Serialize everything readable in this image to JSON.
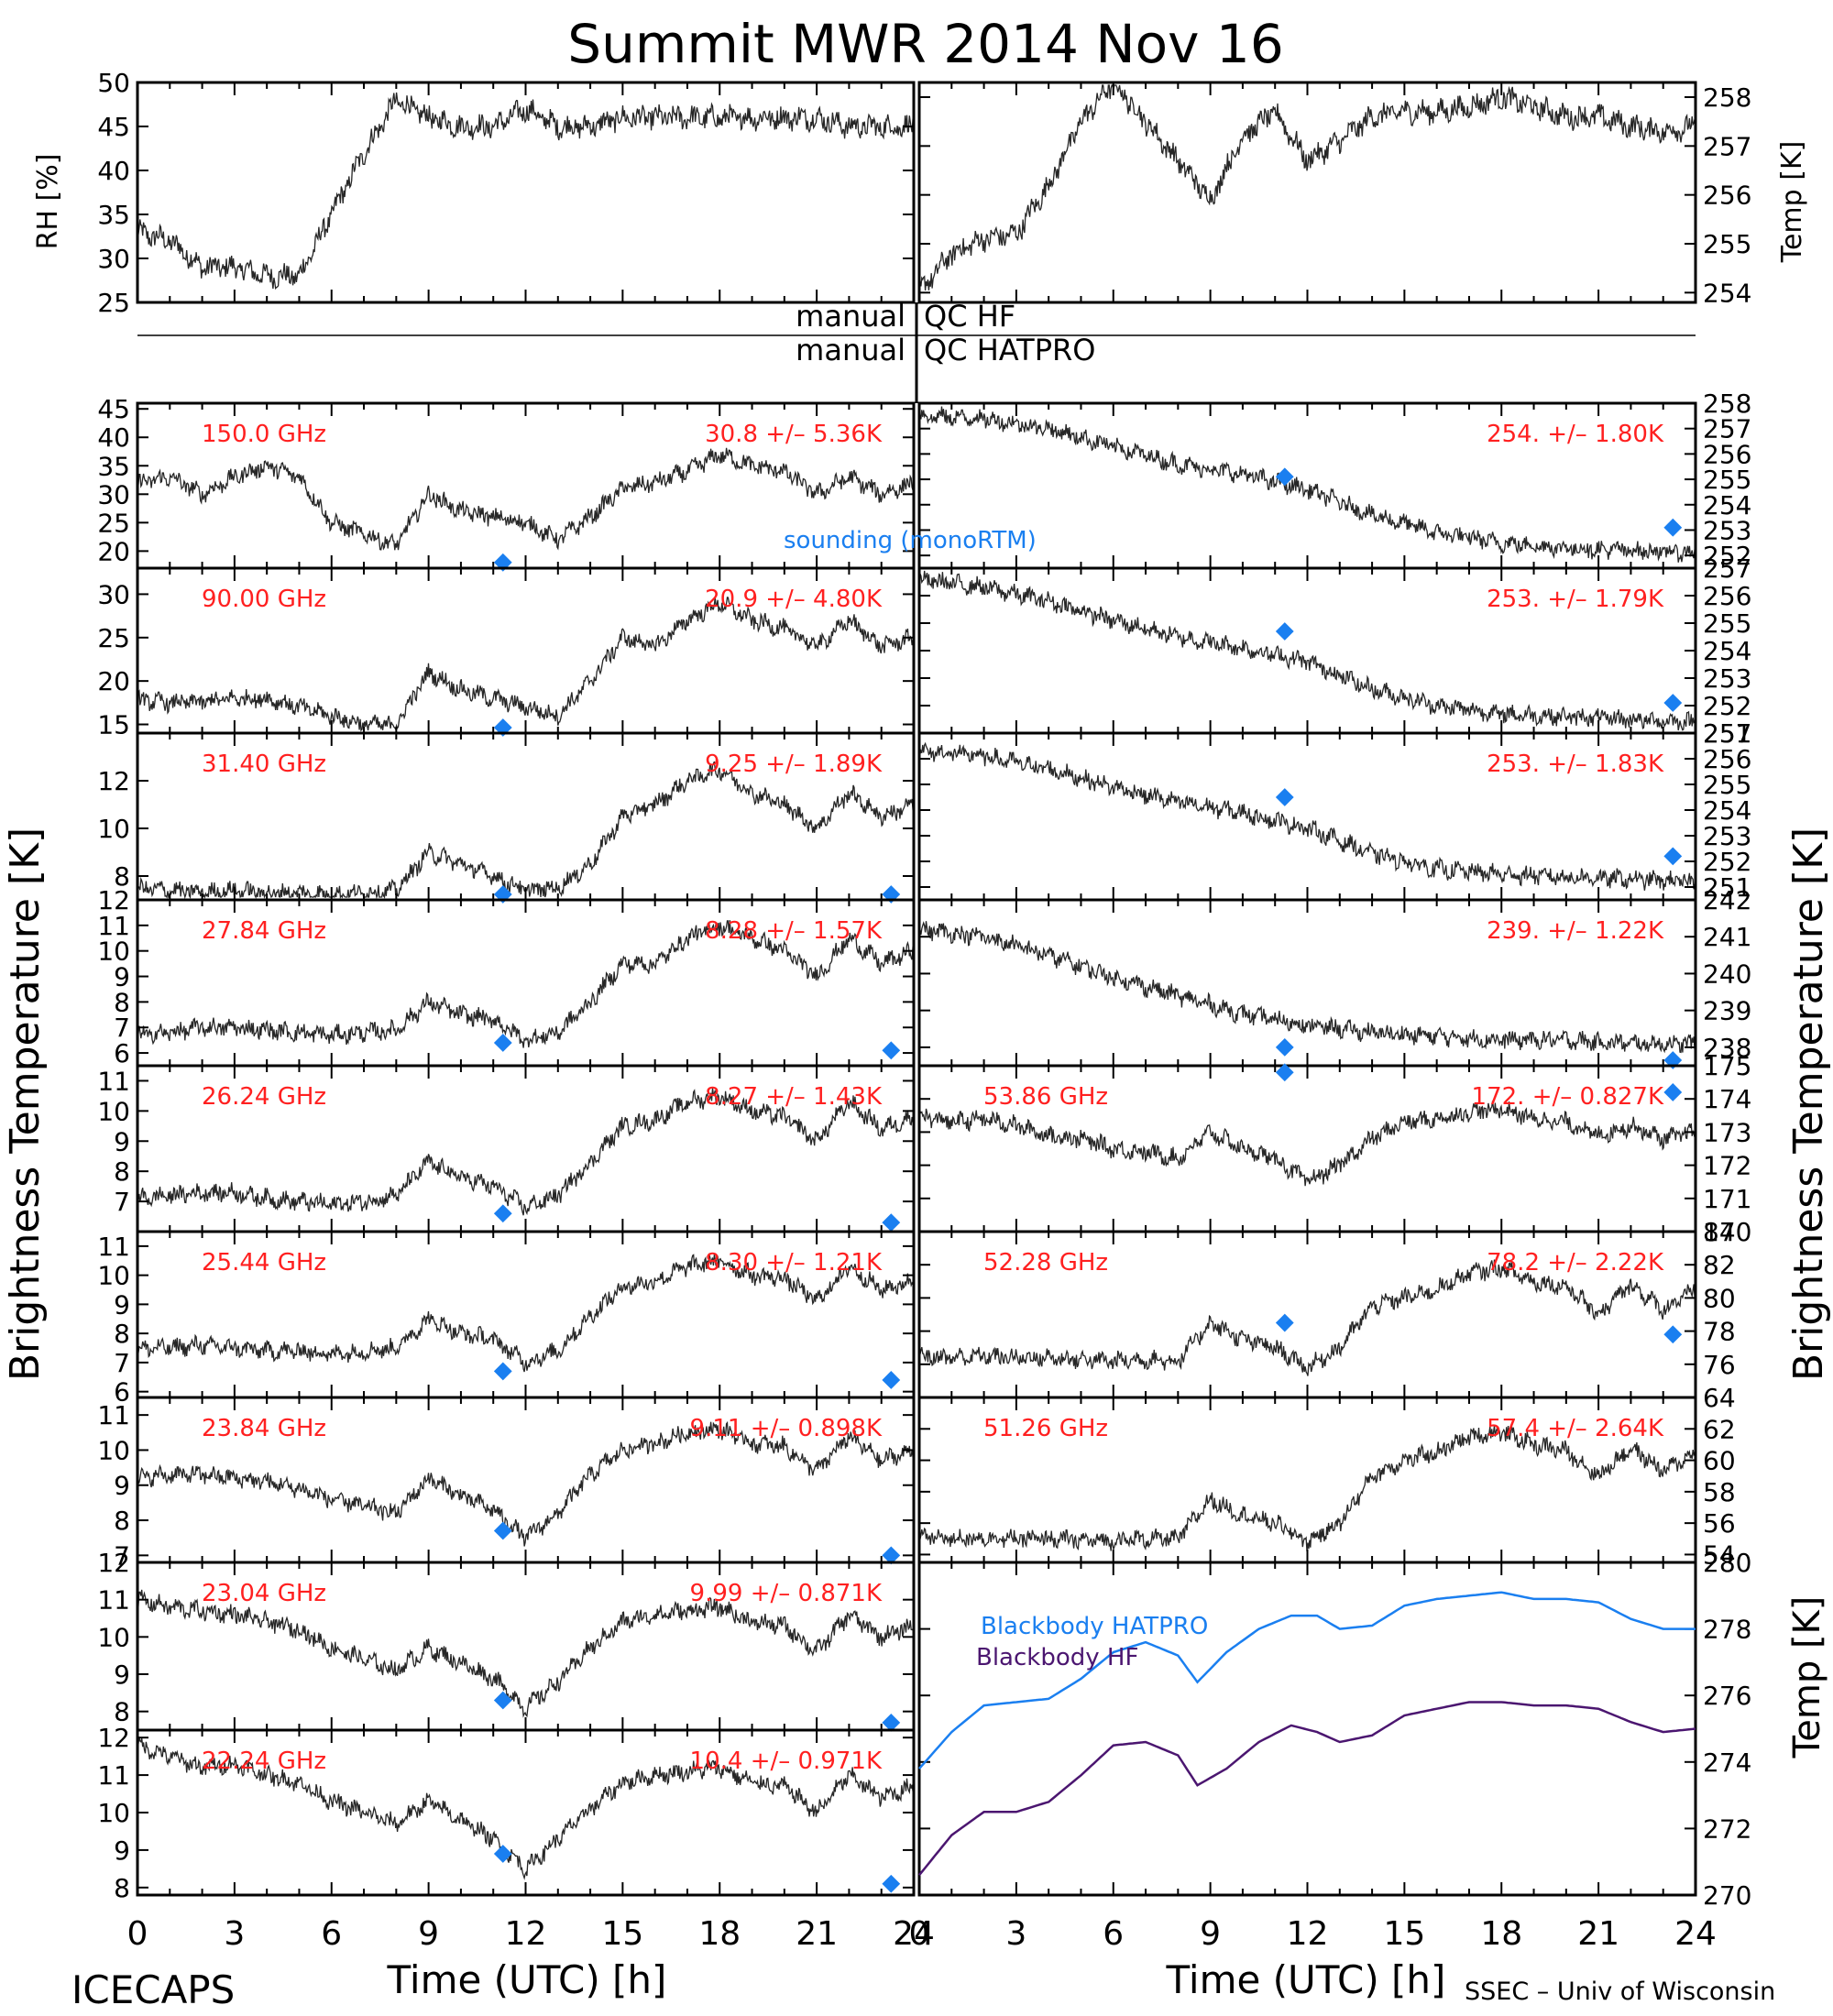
{
  "title": "Summit MWR 2014 Nov 16",
  "footer_left": "ICECAPS",
  "footer_right": "SSEC – Univ of Wisconsin",
  "xlabel": "Time (UTC) [h]",
  "ylabel_left": "Brightness Temperature [K]",
  "ylabel_right": "Brightness Temperature [K]",
  "qc_labels": [
    "manual",
    "QC HF",
    "manual",
    "QC HATPRO"
  ],
  "sounding_label": "sounding (monoRTM)",
  "colors": {
    "trace": "#000000",
    "label_red": "#ff2020",
    "sounding": "#1a7ff0",
    "bb_hatpro": "#1a7ff0",
    "bb_hf": "#4b1670"
  },
  "chart_data": [
    {
      "type": "scatter",
      "id": "rh",
      "ylabel": "RH [%]",
      "ylim": [
        25,
        50
      ],
      "yticks": [
        25,
        30,
        35,
        40,
        45,
        50
      ],
      "x": [
        0,
        1,
        2,
        3,
        4,
        5,
        6,
        7,
        8,
        9,
        10,
        11,
        12,
        13,
        14,
        15,
        16,
        17,
        18,
        19,
        20,
        21,
        22,
        23,
        24
      ],
      "y": [
        33,
        32,
        29,
        29,
        28,
        28,
        35,
        42,
        48,
        46,
        45,
        45,
        47,
        45,
        45,
        46,
        46,
        46,
        46,
        46,
        46,
        46,
        45,
        45,
        45
      ]
    },
    {
      "type": "scatter",
      "id": "temp",
      "ylabel": "Temp [K]",
      "ylim": [
        253.8,
        258.3
      ],
      "yticks": [
        254,
        255,
        256,
        257,
        258
      ],
      "x": [
        0,
        1,
        2,
        3,
        4,
        5,
        6,
        7,
        8,
        9,
        10,
        11,
        12,
        13,
        14,
        15,
        16,
        17,
        18,
        19,
        20,
        21,
        22,
        23,
        24
      ],
      "y": [
        254.0,
        254.8,
        255.1,
        255.2,
        256.2,
        257.5,
        258.3,
        257.5,
        256.7,
        255.9,
        257.2,
        257.7,
        256.7,
        257.1,
        257.6,
        257.7,
        257.7,
        257.8,
        258.0,
        257.8,
        257.6,
        257.6,
        257.4,
        257.3,
        257.4
      ]
    },
    {
      "type": "scatter",
      "id": "c150",
      "freq_label": "150.0 GHz",
      "stat_label": "30.8 +/– 5.36K",
      "ylim": [
        17,
        46
      ],
      "yticks": [
        20,
        25,
        30,
        35,
        40,
        45
      ],
      "x": [
        0,
        1,
        2,
        3,
        4,
        5,
        6,
        7,
        8,
        9,
        10,
        11,
        12,
        13,
        14,
        15,
        16,
        17,
        18,
        19,
        20,
        21,
        22,
        23,
        24
      ],
      "y": [
        32,
        33,
        30,
        33,
        35,
        33,
        25,
        23,
        21,
        30,
        27,
        26,
        25,
        22,
        26,
        31,
        32,
        34,
        37,
        35,
        34,
        30,
        33,
        30,
        32
      ],
      "sounding": [
        [
          11.3,
          18
        ],
        [
          23.3,
          null
        ]
      ]
    },
    {
      "type": "scatter",
      "id": "c150b",
      "freq_label": "",
      "stat_label": "254. +/– 1.80K",
      "ylim": [
        251.5,
        258
      ],
      "yticks": [
        252,
        253,
        254,
        255,
        256,
        257,
        258
      ],
      "x": [
        0,
        2,
        4,
        6,
        8,
        10,
        12,
        14,
        16,
        18,
        20,
        22,
        24
      ],
      "y": [
        257.5,
        257.4,
        257.0,
        256.3,
        255.6,
        255.2,
        254.6,
        253.6,
        252.9,
        252.5,
        252.3,
        252.2,
        252.1
      ],
      "sounding": [
        [
          11.3,
          255.1
        ],
        [
          23.3,
          253.1
        ]
      ]
    },
    {
      "type": "scatter",
      "id": "c90",
      "freq_label": "90.00 GHz",
      "stat_label": "20.9 +/– 4.80K",
      "ylim": [
        14,
        33
      ],
      "yticks": [
        15,
        20,
        25,
        30
      ],
      "x": [
        0,
        1,
        2,
        3,
        4,
        5,
        6,
        7,
        8,
        9,
        10,
        11,
        12,
        13,
        14,
        15,
        16,
        17,
        18,
        19,
        20,
        21,
        22,
        23,
        24
      ],
      "y": [
        17.8,
        17.5,
        17.6,
        18,
        18,
        17,
        16,
        15,
        15,
        21,
        19,
        18,
        17,
        16,
        20,
        25,
        24,
        27,
        29,
        27,
        26,
        24,
        27,
        24,
        25
      ],
      "sounding": [
        [
          11.3,
          14
        ],
        [
          23.3,
          null
        ]
      ]
    },
    {
      "type": "scatter",
      "id": "c90b",
      "freq_label": "",
      "stat_label": "253. +/– 1.79K",
      "ylim": [
        251,
        257
      ],
      "yticks": [
        251,
        252,
        253,
        254,
        255,
        256,
        257
      ],
      "x": [
        0,
        2,
        4,
        6,
        8,
        10,
        12,
        14,
        16,
        18,
        20,
        22,
        24
      ],
      "y": [
        256.6,
        256.3,
        255.8,
        255.1,
        254.5,
        254.1,
        253.6,
        252.6,
        252.0,
        251.7,
        251.6,
        251.5,
        251.4
      ],
      "sounding": [
        [
          11.3,
          254.7
        ],
        [
          23.3,
          252.1
        ]
      ]
    },
    {
      "type": "scatter",
      "id": "c31",
      "freq_label": "31.40 GHz",
      "stat_label": "9.25 +/– 1.89K",
      "ylim": [
        7,
        14
      ],
      "yticks": [
        8,
        10,
        12
      ],
      "x": [
        0,
        1,
        2,
        3,
        4,
        5,
        6,
        7,
        8,
        9,
        10,
        11,
        12,
        13,
        14,
        15,
        16,
        17,
        18,
        19,
        20,
        21,
        22,
        23,
        24
      ],
      "y": [
        7.5,
        7.4,
        7.3,
        7.4,
        7.3,
        7.3,
        7.2,
        7.3,
        7.4,
        9,
        8.5,
        8,
        7.4,
        7.5,
        8.5,
        10.5,
        11,
        12,
        12.5,
        11.5,
        11,
        10,
        11.5,
        10.5,
        11
      ],
      "sounding": [
        [
          11.3,
          7.2
        ],
        [
          23.3,
          7.1
        ]
      ]
    },
    {
      "type": "scatter",
      "id": "c31b",
      "freq_label": "",
      "stat_label": "253. +/– 1.83K",
      "ylim": [
        250.5,
        257
      ],
      "yticks": [
        251,
        252,
        253,
        254,
        255,
        256,
        257
      ],
      "x": [
        0,
        2,
        4,
        6,
        8,
        10,
        12,
        14,
        16,
        18,
        20,
        22,
        24
      ],
      "y": [
        256.3,
        256.1,
        255.6,
        254.9,
        254.3,
        253.9,
        253.3,
        252.3,
        251.7,
        251.5,
        251.4,
        251.3,
        251.2
      ],
      "sounding": [
        [
          11.3,
          254.5
        ],
        [
          23.3,
          252.2
        ]
      ]
    },
    {
      "type": "scatter",
      "id": "c2784",
      "freq_label": "27.84 GHz",
      "stat_label": "8.28 +/– 1.57K",
      "ylim": [
        5.5,
        12
      ],
      "yticks": [
        6,
        7,
        8,
        9,
        10,
        11,
        12
      ],
      "x": [
        0,
        1,
        2,
        3,
        4,
        5,
        6,
        7,
        8,
        9,
        10,
        11,
        12,
        13,
        14,
        15,
        16,
        17,
        18,
        19,
        20,
        21,
        22,
        23,
        24
      ],
      "y": [
        6.7,
        6.8,
        7.0,
        7.0,
        6.9,
        6.8,
        6.7,
        6.8,
        6.9,
        8,
        7.5,
        7.3,
        6.5,
        6.8,
        8,
        9.5,
        9.5,
        10.5,
        11,
        10.5,
        10,
        9,
        10.5,
        9.5,
        10
      ],
      "sounding": [
        [
          11.3,
          6.4
        ],
        [
          23.3,
          6.1
        ]
      ]
    },
    {
      "type": "scatter",
      "id": "c2784b",
      "freq_label": "",
      "stat_label": "239. +/– 1.22K",
      "ylim": [
        237.5,
        242
      ],
      "yticks": [
        238,
        239,
        240,
        241,
        242
      ],
      "x": [
        0,
        2,
        4,
        6,
        8,
        10,
        12,
        14,
        16,
        18,
        20,
        22,
        24
      ],
      "y": [
        241.2,
        241.0,
        240.5,
        239.9,
        239.4,
        238.9,
        238.6,
        238.4,
        238.3,
        238.2,
        238.2,
        238.1,
        238.1
      ],
      "sounding": [
        [
          11.3,
          238.0
        ],
        [
          23.3,
          237.6
        ]
      ]
    },
    {
      "type": "scatter",
      "id": "c2624",
      "freq_label": "26.24 GHz",
      "stat_label": "8.27 +/– 1.43K",
      "ylim": [
        6,
        11.5
      ],
      "yticks": [
        7,
        8,
        9,
        10,
        11
      ],
      "x": [
        0,
        1,
        2,
        3,
        4,
        5,
        6,
        7,
        8,
        9,
        10,
        11,
        12,
        13,
        14,
        15,
        16,
        17,
        18,
        19,
        20,
        21,
        22,
        23,
        24
      ],
      "y": [
        7.1,
        7.2,
        7.3,
        7.3,
        7.1,
        7.0,
        6.9,
        7.0,
        7.2,
        8.3,
        7.8,
        7.5,
        6.8,
        7.2,
        8.3,
        9.5,
        9.7,
        10.3,
        10.5,
        10,
        9.8,
        9,
        10.3,
        9.4,
        9.8
      ],
      "sounding": [
        [
          11.3,
          6.6
        ],
        [
          23.3,
          6.3
        ]
      ]
    },
    {
      "type": "scatter",
      "id": "c2624b",
      "freq_label": "53.86 GHz",
      "stat_label": "172. +/– 0.827K",
      "ylim": [
        170,
        175
      ],
      "yticks": [
        170,
        171,
        172,
        173,
        174,
        175
      ],
      "x": [
        0,
        1,
        2,
        3,
        4,
        5,
        6,
        7,
        8,
        9,
        10,
        11,
        12,
        13,
        14,
        15,
        16,
        17,
        18,
        19,
        20,
        21,
        22,
        23,
        24
      ],
      "y": [
        173.5,
        173.3,
        173.4,
        173.2,
        172.9,
        172.8,
        172.5,
        172.4,
        172.2,
        173,
        172.5,
        172.2,
        171.5,
        172,
        172.8,
        173.3,
        173.4,
        173.6,
        173.7,
        173.4,
        173.3,
        172.9,
        173.2,
        172.8,
        173.0
      ],
      "sounding": [
        [
          11.3,
          174.8
        ],
        [
          23.3,
          174.2
        ]
      ]
    },
    {
      "type": "scatter",
      "id": "c2544",
      "freq_label": "25.44 GHz",
      "stat_label": "8.30 +/– 1.21K",
      "ylim": [
        5.8,
        11.5
      ],
      "yticks": [
        6,
        7,
        8,
        9,
        10,
        11
      ],
      "x": [
        0,
        1,
        2,
        3,
        4,
        5,
        6,
        7,
        8,
        9,
        10,
        11,
        12,
        13,
        14,
        15,
        16,
        17,
        18,
        19,
        20,
        21,
        22,
        23,
        24
      ],
      "y": [
        7.5,
        7.5,
        7.6,
        7.5,
        7.4,
        7.4,
        7.3,
        7.4,
        7.5,
        8.5,
        8,
        7.8,
        7.0,
        7.4,
        8.6,
        9.6,
        9.8,
        10.3,
        10.5,
        10,
        9.9,
        9.1,
        10.3,
        9.5,
        9.8
      ],
      "sounding": [
        [
          11.3,
          6.7
        ],
        [
          23.3,
          6.4
        ]
      ]
    },
    {
      "type": "scatter",
      "id": "c2544b",
      "freq_label": "52.28 GHz",
      "stat_label": "78.2 +/– 2.22K",
      "ylim": [
        74,
        84
      ],
      "yticks": [
        76,
        78,
        80,
        82,
        84
      ],
      "x": [
        0,
        1,
        2,
        3,
        4,
        5,
        6,
        7,
        8,
        9,
        10,
        11,
        12,
        13,
        14,
        15,
        16,
        17,
        18,
        19,
        20,
        21,
        22,
        23,
        24
      ],
      "y": [
        76.5,
        76.4,
        76.5,
        76.4,
        76.4,
        76.3,
        76.2,
        76.3,
        76.2,
        78.5,
        77.5,
        77,
        75.8,
        77,
        79.5,
        80,
        80.5,
        81.5,
        81.8,
        81,
        80.7,
        79,
        80.8,
        79.3,
        80.5
      ],
      "sounding": [
        [
          11.3,
          78.5
        ],
        [
          23.3,
          77.8
        ]
      ]
    },
    {
      "type": "scatter",
      "id": "c2384",
      "freq_label": "23.84 GHz",
      "stat_label": "9.11 +/– 0.898K",
      "ylim": [
        6.8,
        11.5
      ],
      "yticks": [
        7,
        8,
        9,
        10,
        11
      ],
      "x": [
        0,
        1,
        2,
        3,
        4,
        5,
        6,
        7,
        8,
        9,
        10,
        11,
        12,
        13,
        14,
        15,
        16,
        17,
        18,
        19,
        20,
        21,
        22,
        23,
        24
      ],
      "y": [
        9.2,
        9.3,
        9.3,
        9.2,
        9.1,
        8.9,
        8.6,
        8.4,
        8.2,
        9.2,
        8.7,
        8.3,
        7.5,
        8.2,
        9.3,
        10,
        10.2,
        10.5,
        10.6,
        10.2,
        10.1,
        9.4,
        10.4,
        9.7,
        10.0
      ],
      "sounding": [
        [
          11.3,
          7.7
        ],
        [
          23.3,
          7.0
        ]
      ]
    },
    {
      "type": "scatter",
      "id": "c2384b",
      "freq_label": "51.26 GHz",
      "stat_label": "57.4 +/– 2.64K",
      "ylim": [
        53.5,
        64
      ],
      "yticks": [
        54,
        56,
        58,
        60,
        62,
        64
      ],
      "x": [
        0,
        1,
        2,
        3,
        4,
        5,
        6,
        7,
        8,
        9,
        10,
        11,
        12,
        13,
        14,
        15,
        16,
        17,
        18,
        19,
        20,
        21,
        22,
        23,
        24
      ],
      "y": [
        55.2,
        55.0,
        55.1,
        55.0,
        55.0,
        54.9,
        54.9,
        55.0,
        55.0,
        57.5,
        56.5,
        56,
        54.8,
        56,
        59,
        60,
        60.5,
        61.5,
        61.8,
        61,
        60.6,
        59,
        60.8,
        59.3,
        60.5
      ],
      "sounding": []
    },
    {
      "type": "scatter",
      "id": "c2304",
      "freq_label": "23.04 GHz",
      "stat_label": "9.99 +/– 0.871K",
      "ylim": [
        7.5,
        12
      ],
      "yticks": [
        8,
        9,
        10,
        11,
        12
      ],
      "x": [
        0,
        1,
        2,
        3,
        4,
        5,
        6,
        7,
        8,
        9,
        10,
        11,
        12,
        13,
        14,
        15,
        16,
        17,
        18,
        19,
        20,
        21,
        22,
        23,
        24
      ],
      "y": [
        11.0,
        10.8,
        10.7,
        10.6,
        10.4,
        10.2,
        9.7,
        9.4,
        9.1,
        9.7,
        9.3,
        8.9,
        8.1,
        8.8,
        9.7,
        10.4,
        10.6,
        10.7,
        10.8,
        10.4,
        10.3,
        9.6,
        10.6,
        10.0,
        10.3
      ],
      "sounding": [
        [
          11.3,
          8.3
        ],
        [
          23.3,
          7.7
        ]
      ]
    },
    {
      "type": "scatter",
      "id": "c2224",
      "freq_label": "22.24 GHz",
      "stat_label": "10.4 +/– 0.971K",
      "ylim": [
        7.8,
        12.2
      ],
      "yticks": [
        8,
        9,
        10,
        11,
        12
      ],
      "x": [
        0,
        1,
        2,
        3,
        4,
        5,
        6,
        7,
        8,
        9,
        10,
        11,
        12,
        13,
        14,
        15,
        16,
        17,
        18,
        19,
        20,
        21,
        22,
        23,
        24
      ],
      "y": [
        11.8,
        11.5,
        11.2,
        11.3,
        11.0,
        10.8,
        10.3,
        10.0,
        9.7,
        10.3,
        9.8,
        9.3,
        8.5,
        9.3,
        10.1,
        10.8,
        11.0,
        11.1,
        11.2,
        10.8,
        10.7,
        10.0,
        11.0,
        10.4,
        10.7
      ],
      "sounding": [
        [
          11.3,
          8.9
        ],
        [
          23.3,
          8.1
        ]
      ]
    },
    {
      "type": "line",
      "id": "bb",
      "ylabel": "Temp [K]",
      "ylim": [
        270,
        280
      ],
      "yticks": [
        270,
        272,
        274,
        276,
        278,
        280
      ],
      "x": [
        0,
        1,
        2,
        3,
        4,
        5,
        6,
        7,
        8,
        8.6,
        9.5,
        10.5,
        11.5,
        12.3,
        13,
        14,
        15,
        16,
        17,
        18,
        19,
        20,
        21,
        22,
        23,
        24
      ],
      "series": [
        {
          "name": "Blackbody HATPRO",
          "values": [
            273.8,
            274.9,
            275.7,
            275.8,
            275.9,
            276.5,
            277.3,
            277.6,
            277.2,
            276.4,
            277.3,
            278.0,
            278.4,
            278.4,
            278.0,
            278.1,
            278.7,
            278.9,
            279.0,
            279.1,
            278.9,
            278.9,
            278.8,
            278.3,
            278.0,
            278.0
          ]
        },
        {
          "name": "Blackbody HF",
          "values": [
            270.6,
            271.8,
            272.5,
            272.5,
            272.8,
            273.6,
            274.5,
            274.6,
            274.2,
            273.3,
            273.8,
            274.6,
            275.1,
            274.9,
            274.6,
            274.8,
            275.4,
            275.6,
            275.8,
            275.8,
            275.7,
            275.7,
            275.6,
            275.2,
            274.9,
            275.0
          ]
        }
      ]
    }
  ],
  "xticks": [
    0,
    3,
    6,
    9,
    12,
    15,
    18,
    21,
    24
  ]
}
